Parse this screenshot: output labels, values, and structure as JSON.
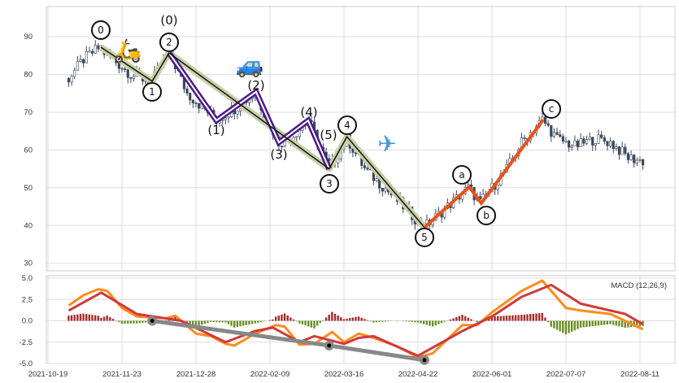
{
  "chart_data": {
    "type": "candlestick+line",
    "x_tick_labels": [
      "2021-10-19",
      "2021-11-23",
      "2021-12-28",
      "2022-02-09",
      "2022-03-16",
      "2022-04-22",
      "2022-06-01",
      "2022-07-07",
      "2022-08-11"
    ],
    "x_tick_index": [
      0,
      25,
      50,
      75,
      100,
      125,
      150,
      175,
      200
    ],
    "price": {
      "ylim": [
        28,
        98
      ],
      "yticks": [
        30,
        40,
        50,
        60,
        70,
        80,
        90
      ],
      "path": [
        [
          7,
          79
        ],
        [
          12,
          84
        ],
        [
          17,
          87
        ],
        [
          22,
          84
        ],
        [
          28,
          80
        ],
        [
          35,
          78
        ],
        [
          41,
          86
        ],
        [
          47,
          75
        ],
        [
          57,
          68
        ],
        [
          63,
          71
        ],
        [
          70,
          75
        ],
        [
          74,
          68
        ],
        [
          78,
          62
        ],
        [
          83,
          64
        ],
        [
          88,
          68
        ],
        [
          95,
          55
        ],
        [
          101,
          63
        ],
        [
          107,
          55
        ],
        [
          115,
          49
        ],
        [
          127,
          39.5
        ],
        [
          135,
          45
        ],
        [
          142,
          50
        ],
        [
          146,
          46
        ],
        [
          155,
          55
        ],
        [
          160,
          62
        ],
        [
          167,
          68
        ],
        [
          172,
          63
        ],
        [
          178,
          61
        ],
        [
          185,
          63
        ],
        [
          190,
          62
        ],
        [
          196,
          58
        ],
        [
          201,
          57
        ]
      ]
    },
    "waves": {
      "primary": {
        "labels": [
          "0",
          "1",
          "2",
          "3",
          "4",
          "5"
        ],
        "points": [
          [
            17.9,
            87.2
          ],
          [
            35.2,
            78.2
          ],
          [
            40.9,
            85.7
          ],
          [
            95,
            55
          ],
          [
            101,
            63.5
          ],
          [
            127.2,
            39.5
          ]
        ],
        "color": "#111111",
        "halo": "#c8d0a8"
      },
      "sub": {
        "labels": [
          "(0)",
          "(1)",
          "(2)",
          "(3)",
          "(4)",
          "(5)"
        ],
        "points": [
          [
            40.9,
            85.7
          ],
          [
            56.9,
            67.8
          ],
          [
            70.3,
            75.4
          ],
          [
            78,
            62
          ],
          [
            87.9,
            67.8
          ],
          [
            95,
            55
          ]
        ],
        "color": "#4b1a8a"
      },
      "corrective": {
        "labels": [
          "a",
          "b",
          "c"
        ],
        "points": [
          [
            127.2,
            39.5
          ],
          [
            142.3,
            50.2
          ],
          [
            146.4,
            45.9
          ],
          [
            167.3,
            68
          ]
        ],
        "color": "#e8521a"
      }
    },
    "icons": [
      "scooter-icon",
      "car-icon",
      "airplane-icon"
    ],
    "macd": {
      "title": "MACD (12,26,9)",
      "ylim": [
        -5,
        5
      ],
      "yticks": [
        "5.0",
        "2.5",
        "0.0",
        "-2.5",
        "-5.0"
      ],
      "macd_line": [
        [
          7,
          1.8
        ],
        [
          12,
          3.0
        ],
        [
          17,
          3.7
        ],
        [
          20,
          3.5
        ],
        [
          25,
          1.5
        ],
        [
          30,
          0.5
        ],
        [
          40,
          0.3
        ],
        [
          43,
          0.6
        ],
        [
          50,
          -1.5
        ],
        [
          55,
          -1.8
        ],
        [
          60,
          -2.7
        ],
        [
          63,
          -2.9
        ],
        [
          70,
          -1.5
        ],
        [
          77,
          -0.5
        ],
        [
          80,
          -0.7
        ],
        [
          85,
          -2.8
        ],
        [
          90,
          -2.7
        ],
        [
          96,
          -1.3
        ],
        [
          100,
          -2.5
        ],
        [
          105,
          -1.5
        ],
        [
          110,
          -2.0
        ],
        [
          118,
          -3.0
        ],
        [
          125,
          -4.3
        ],
        [
          130,
          -3.8
        ],
        [
          140,
          -0.5
        ],
        [
          145,
          -0.5
        ],
        [
          150,
          1.0
        ],
        [
          160,
          3.5
        ],
        [
          167,
          4.7
        ],
        [
          175,
          1.5
        ],
        [
          180,
          1.2
        ],
        [
          190,
          0.8
        ],
        [
          201,
          -1.0
        ]
      ],
      "signal_line": [
        [
          7,
          1.2
        ],
        [
          18,
          3.3
        ],
        [
          30,
          0.8
        ],
        [
          45,
          0
        ],
        [
          60,
          -2.5
        ],
        [
          70,
          -1.2
        ],
        [
          76,
          -0.8
        ],
        [
          85,
          -2.5
        ],
        [
          90,
          -1.8
        ],
        [
          100,
          -2.7
        ],
        [
          105,
          -2.0
        ],
        [
          110,
          -1.8
        ],
        [
          125,
          -4.1
        ],
        [
          140,
          -1.2
        ],
        [
          150,
          0.5
        ],
        [
          160,
          2.8
        ],
        [
          170,
          4.2
        ],
        [
          180,
          2.0
        ],
        [
          195,
          0.8
        ],
        [
          201,
          -0.4
        ]
      ],
      "divergence": [
        [
          35.2,
          0
        ],
        [
          95,
          -2.9
        ],
        [
          127.2,
          -4.6
        ]
      ],
      "colors": {
        "macd": "#ff8c1a",
        "signal": "#d03a3a",
        "hist_pos": "#a52a2a",
        "hist_neg": "#6b8e23",
        "divergence": "#888888"
      }
    }
  }
}
